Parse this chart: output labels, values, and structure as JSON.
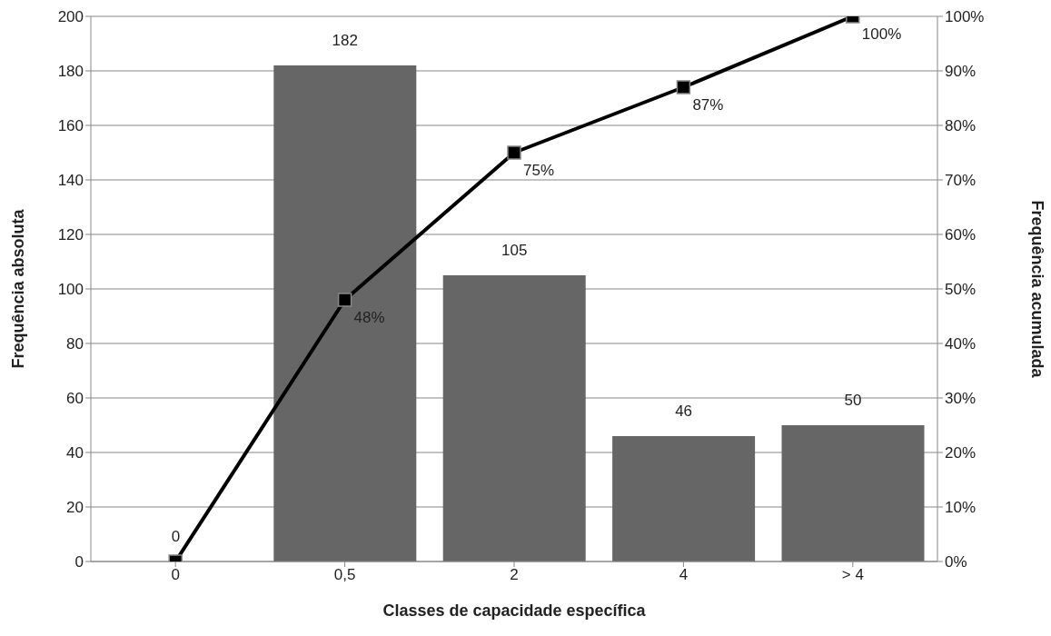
{
  "chart_data": {
    "type": "bar",
    "xlabel": "Classes de capacidade específica",
    "ylabel": "Frequência absoluta",
    "y2label": "Frequência acumulada",
    "categories": [
      "0",
      "0,5",
      "2",
      "4",
      "> 4"
    ],
    "series": [
      {
        "color": "#666666",
        "values": [
          0,
          182,
          105,
          46,
          50
        ],
        "data_labels": true
      },
      {
        "type": "line",
        "axis": "y2",
        "color": "#000000",
        "values": [
          0,
          48,
          75,
          87,
          100
        ],
        "value_labels": [
          null,
          "48%",
          "75%",
          "87%",
          "100%"
        ],
        "marker": "square",
        "line_style": "solid"
      }
    ],
    "ylim": [
      0,
      200
    ],
    "yticks": [
      0,
      20,
      40,
      60,
      80,
      100,
      120,
      140,
      160,
      180,
      200
    ],
    "y2lim": [
      0,
      100
    ],
    "y2ticks": [
      {
        "value": 0,
        "label": "0%"
      },
      {
        "value": 10,
        "label": "10%"
      },
      {
        "value": 20,
        "label": "20%"
      },
      {
        "value": 30,
        "label": "30%"
      },
      {
        "value": 40,
        "label": "40%"
      },
      {
        "value": 50,
        "label": "50%"
      },
      {
        "value": 60,
        "label": "60%"
      },
      {
        "value": 70,
        "label": "70%"
      },
      {
        "value": 80,
        "label": "80%"
      },
      {
        "value": 90,
        "label": "90%"
      },
      {
        "value": 100,
        "label": "100%"
      }
    ],
    "grid": "y",
    "legend": false
  }
}
